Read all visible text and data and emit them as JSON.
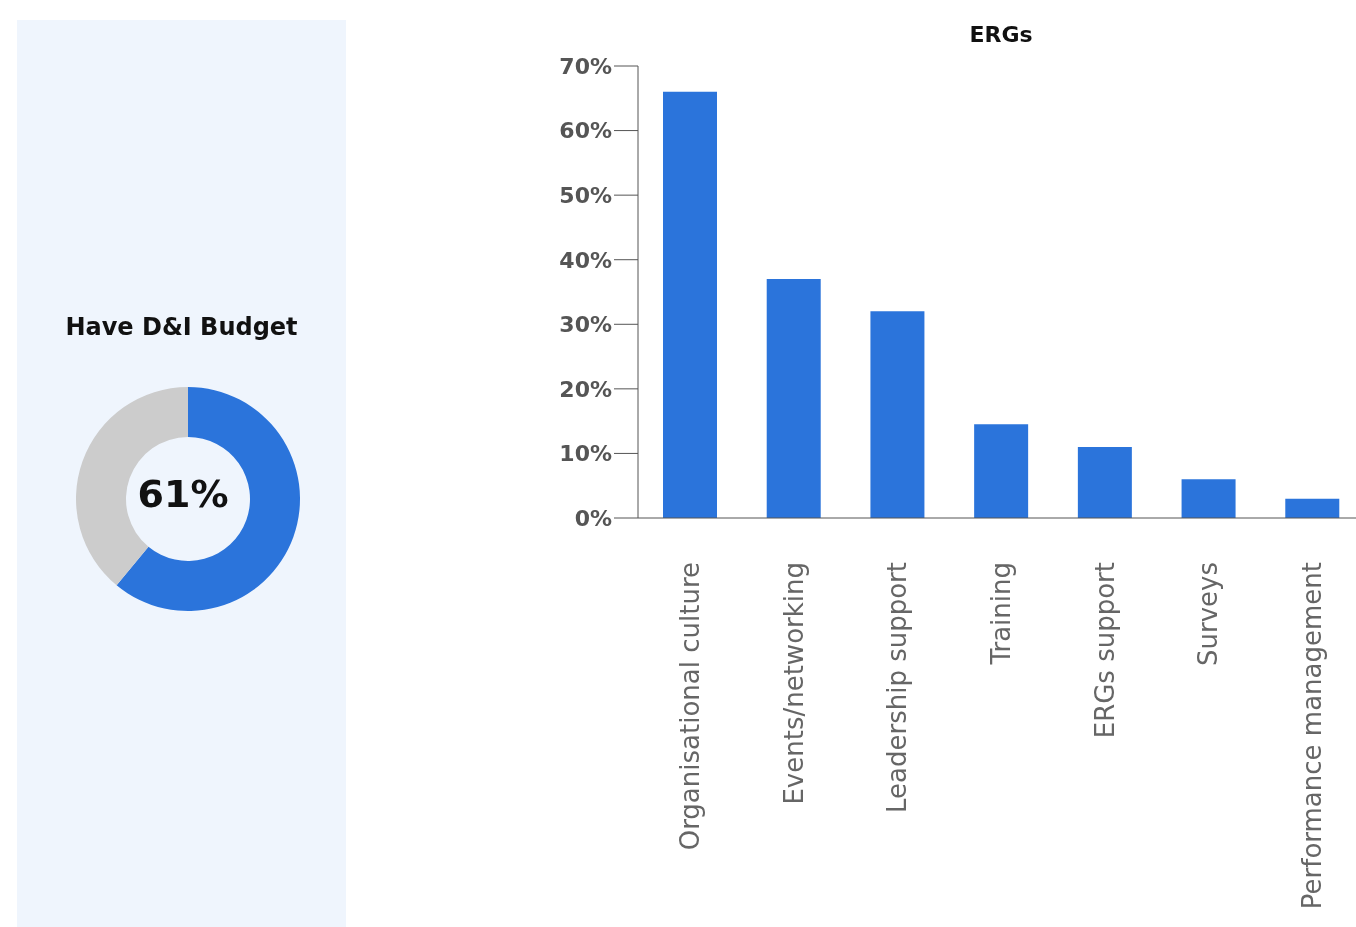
{
  "chart_data": [
    {
      "type": "donut",
      "title": "Have D&I Budget",
      "categories": [
        null,
        null
      ],
      "values": [
        61,
        39
      ],
      "colors": [
        "#2b74db",
        "#cccccc"
      ],
      "annotations": [
        "61%"
      ],
      "legend": false
    },
    {
      "type": "bar",
      "title": "ERGs",
      "categories": [
        "Organisational culture",
        "Events/networking",
        "Leadership support",
        "Training",
        "ERGs support",
        "Surveys",
        "Performance management"
      ],
      "values": [
        66,
        37,
        32,
        14.5,
        11,
        6,
        3
      ],
      "color": "#2b74db",
      "ylim": [
        0,
        70
      ],
      "yticks": [
        {
          "value": 0,
          "label": "0%"
        },
        {
          "value": 10,
          "label": "10%"
        },
        {
          "value": 20,
          "label": "20%"
        },
        {
          "value": 30,
          "label": "30%"
        },
        {
          "value": 40,
          "label": "40%"
        },
        {
          "value": 50,
          "label": "50%"
        },
        {
          "value": 60,
          "label": "60%"
        },
        {
          "value": 70,
          "label": "70%"
        }
      ],
      "grid": false,
      "legend": false
    }
  ]
}
